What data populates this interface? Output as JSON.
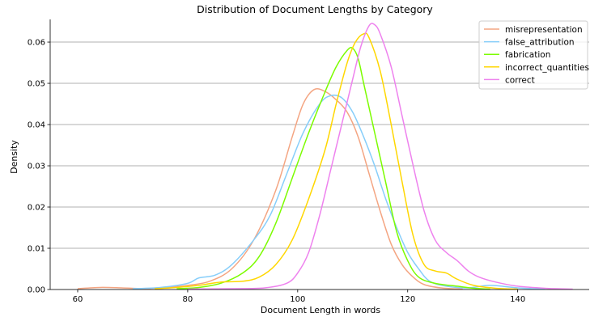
{
  "chart_data": {
    "type": "line",
    "title": "Distribution of Document Lengths by Category",
    "xlabel": "Document Length in words",
    "ylabel": "Density",
    "xlim": [
      55,
      153
    ],
    "ylim": [
      0,
      0.0655
    ],
    "xticks": [
      60,
      80,
      100,
      120,
      140
    ],
    "yticks": [
      0.0,
      0.01,
      0.02,
      0.03,
      0.04,
      0.05,
      0.06
    ],
    "ytick_labels": [
      "0.00",
      "0.01",
      "0.02",
      "0.03",
      "0.04",
      "0.05",
      "0.06"
    ],
    "grid": "horizontal",
    "legend_position": "top-right",
    "series": [
      {
        "name": "misrepresentation",
        "color": "#f4a582",
        "points": [
          [
            60,
            0.0002
          ],
          [
            64,
            0.0005
          ],
          [
            68,
            0.0004
          ],
          [
            72,
            0.0002
          ],
          [
            76,
            0.0005
          ],
          [
            80,
            0.001
          ],
          [
            84,
            0.002
          ],
          [
            88,
            0.005
          ],
          [
            92,
            0.012
          ],
          [
            96,
            0.024
          ],
          [
            99,
            0.037
          ],
          [
            101,
            0.045
          ],
          [
            103,
            0.0485
          ],
          [
            105,
            0.048
          ],
          [
            107,
            0.046
          ],
          [
            109,
            0.043
          ],
          [
            111,
            0.037
          ],
          [
            113,
            0.028
          ],
          [
            115,
            0.019
          ],
          [
            117,
            0.011
          ],
          [
            119,
            0.006
          ],
          [
            121,
            0.003
          ],
          [
            123,
            0.0012
          ],
          [
            126,
            0.0004
          ],
          [
            130,
            0.0001
          ]
        ]
      },
      {
        "name": "false_attribution",
        "color": "#87cefa",
        "points": [
          [
            70,
            0.0002
          ],
          [
            75,
            0.0005
          ],
          [
            80,
            0.0015
          ],
          [
            82,
            0.0028
          ],
          [
            85,
            0.0035
          ],
          [
            88,
            0.006
          ],
          [
            92,
            0.012
          ],
          [
            95,
            0.018
          ],
          [
            98,
            0.028
          ],
          [
            101,
            0.038
          ],
          [
            104,
            0.045
          ],
          [
            106,
            0.047
          ],
          [
            108,
            0.0465
          ],
          [
            110,
            0.043
          ],
          [
            112,
            0.037
          ],
          [
            114,
            0.03
          ],
          [
            116,
            0.022
          ],
          [
            118,
            0.015
          ],
          [
            120,
            0.009
          ],
          [
            122,
            0.005
          ],
          [
            124,
            0.002
          ],
          [
            127,
            0.0008
          ],
          [
            131,
            0.0004
          ],
          [
            135,
            0.001
          ],
          [
            140,
            0.0004
          ],
          [
            145,
            0.0001
          ]
        ]
      },
      {
        "name": "fabrication",
        "color": "#7cfc00",
        "points": [
          [
            78,
            0.0002
          ],
          [
            82,
            0.0005
          ],
          [
            86,
            0.0015
          ],
          [
            90,
            0.004
          ],
          [
            93,
            0.008
          ],
          [
            96,
            0.016
          ],
          [
            99,
            0.027
          ],
          [
            102,
            0.038
          ],
          [
            105,
            0.048
          ],
          [
            107,
            0.054
          ],
          [
            109,
            0.058
          ],
          [
            110,
            0.0585
          ],
          [
            111,
            0.056
          ],
          [
            112,
            0.05
          ],
          [
            114,
            0.038
          ],
          [
            116,
            0.026
          ],
          [
            118,
            0.014
          ],
          [
            120,
            0.007
          ],
          [
            122,
            0.003
          ],
          [
            125,
            0.0015
          ],
          [
            129,
            0.0008
          ],
          [
            132,
            0.0003
          ],
          [
            135,
            0.0001
          ]
        ]
      },
      {
        "name": "incorrect_quantities",
        "color": "#ffd700",
        "points": [
          [
            74,
            0.0002
          ],
          [
            78,
            0.0005
          ],
          [
            82,
            0.001
          ],
          [
            86,
            0.0018
          ],
          [
            90,
            0.002
          ],
          [
            93,
            0.003
          ],
          [
            96,
            0.006
          ],
          [
            99,
            0.012
          ],
          [
            102,
            0.022
          ],
          [
            105,
            0.034
          ],
          [
            107,
            0.045
          ],
          [
            109,
            0.055
          ],
          [
            110.5,
            0.06
          ],
          [
            112,
            0.062
          ],
          [
            113,
            0.061
          ],
          [
            115,
            0.053
          ],
          [
            117,
            0.04
          ],
          [
            119,
            0.026
          ],
          [
            121,
            0.013
          ],
          [
            123,
            0.006
          ],
          [
            125,
            0.0045
          ],
          [
            127,
            0.004
          ],
          [
            129,
            0.0025
          ],
          [
            132,
            0.001
          ],
          [
            136,
            0.0003
          ],
          [
            140,
            0.0001
          ]
        ]
      },
      {
        "name": "correct",
        "color": "#ee82ee",
        "points": [
          [
            80,
            0.0001
          ],
          [
            88,
            0.0002
          ],
          [
            94,
            0.0004
          ],
          [
            98,
            0.0015
          ],
          [
            100,
            0.004
          ],
          [
            102,
            0.009
          ],
          [
            104,
            0.018
          ],
          [
            106,
            0.029
          ],
          [
            108,
            0.04
          ],
          [
            110,
            0.051
          ],
          [
            111.5,
            0.059
          ],
          [
            113,
            0.064
          ],
          [
            114,
            0.0642
          ],
          [
            115,
            0.062
          ],
          [
            117,
            0.054
          ],
          [
            119,
            0.042
          ],
          [
            121,
            0.03
          ],
          [
            123,
            0.019
          ],
          [
            125,
            0.012
          ],
          [
            127,
            0.009
          ],
          [
            129,
            0.007
          ],
          [
            131,
            0.0045
          ],
          [
            133,
            0.003
          ],
          [
            136,
            0.0018
          ],
          [
            140,
            0.0008
          ],
          [
            145,
            0.0003
          ],
          [
            150,
            0.0001
          ]
        ]
      }
    ]
  }
}
